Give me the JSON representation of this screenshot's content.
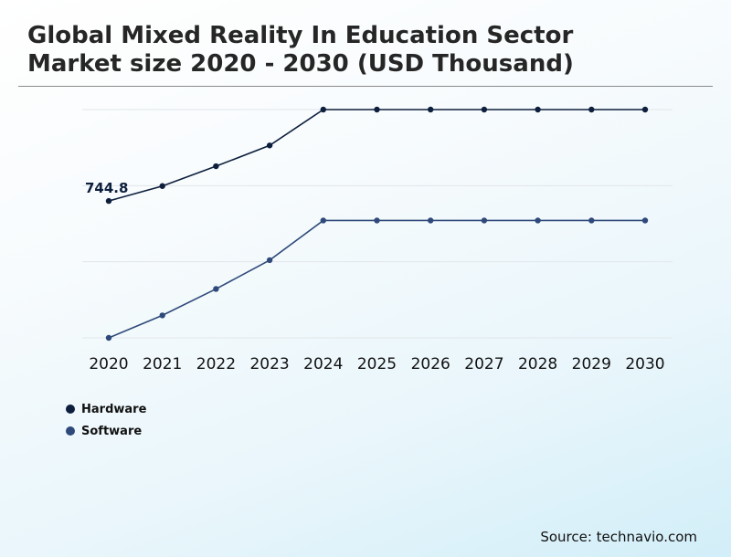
{
  "chart_data": {
    "type": "line",
    "title_lines": [
      "Global Mixed Reality In Education Sector",
      "Market size 2020 - 2030 (USD Thousand)"
    ],
    "categories": [
      "2020",
      "2021",
      "2022",
      "2023",
      "2024",
      "2025",
      "2026",
      "2027",
      "2028",
      "2029",
      "2030"
    ],
    "series": [
      {
        "name": "Hardware",
        "color": "#0d1f3c",
        "values": [
          744.8,
          808,
          892,
          980,
          1132,
          1132,
          1132,
          1132,
          1132,
          1132,
          1132
        ]
      },
      {
        "name": "Software",
        "color": "#2f4a7a",
        "values": [
          164.8,
          260,
          372,
          494,
          662,
          662,
          662,
          662,
          662,
          662,
          662
        ]
      }
    ],
    "annotations": [
      {
        "series": 0,
        "index": 0,
        "text": "744.8"
      }
    ],
    "ylim": [
      164.8,
      1132
    ],
    "grid": true,
    "legend_position": "bottom-left"
  },
  "source_text": "Source: technavio.com"
}
